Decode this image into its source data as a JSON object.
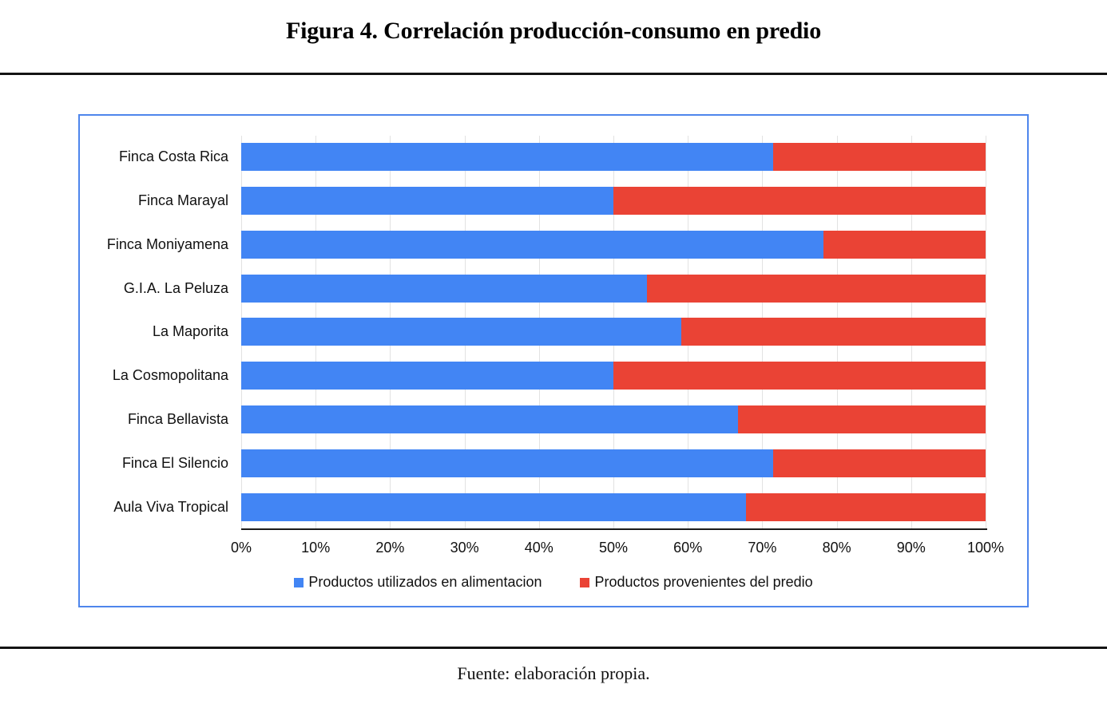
{
  "figure": {
    "title": "Figura 4. Correlación producción-consumo en predio",
    "source_note": "Fuente: elaboración propia."
  },
  "chart_data": {
    "type": "bar",
    "orientation": "horizontal",
    "stacked": true,
    "unit": "percent",
    "title": "Figura 4. Correlación producción-consumo en predio",
    "categories": [
      "Finca Costa Rica",
      "Finca Marayal",
      "Finca Moniyamena",
      "G.I.A. La Peluza",
      "La Maporita",
      "La Cosmopolitana",
      "Finca Bellavista",
      "Finca El Silencio",
      "Aula Viva Tropical"
    ],
    "series": [
      {
        "name": "Productos utilizados en alimentacion",
        "color": "#4285F4",
        "values": [
          71.5,
          50,
          78.2,
          54.5,
          59.1,
          50,
          66.7,
          71.5,
          67.8
        ]
      },
      {
        "name": "Productos provenientes del predio",
        "color": "#EA4335",
        "values": [
          28.5,
          50,
          21.8,
          45.5,
          40.9,
          50,
          33.3,
          28.5,
          32.2
        ]
      }
    ],
    "x_axis": {
      "min": 0,
      "max": 100,
      "ticks": [
        "0%",
        "10%",
        "20%",
        "30%",
        "40%",
        "50%",
        "60%",
        "70%",
        "80%",
        "90%",
        "100%"
      ]
    },
    "grid": true,
    "legend_position": "bottom",
    "frame_border_color": "#4E86EC"
  }
}
